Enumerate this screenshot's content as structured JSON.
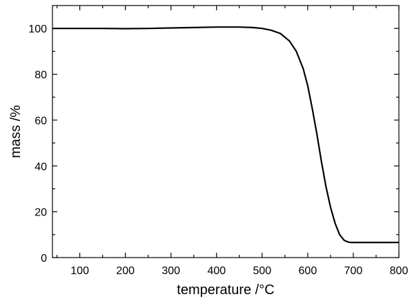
{
  "chart_data": {
    "type": "line",
    "title": "",
    "xlabel": "temperature /°C",
    "ylabel": "mass /%",
    "xlim": [
      40,
      800
    ],
    "ylim": [
      0,
      110
    ],
    "xticks": [
      100,
      200,
      300,
      400,
      500,
      600,
      700,
      800
    ],
    "yticks": [
      0,
      20,
      40,
      60,
      80,
      100
    ],
    "grid": false,
    "legend": "none",
    "line_color": "#000000",
    "series": [
      {
        "x": [
          40,
          100,
          150,
          200,
          250,
          300,
          350,
          400,
          450,
          480,
          500,
          520,
          540,
          560,
          575,
          590,
          600,
          610,
          620,
          630,
          640,
          650,
          660,
          670,
          680,
          690,
          695,
          700,
          720,
          750,
          800
        ],
        "y": [
          100.0,
          100.0,
          100.0,
          99.9,
          100.0,
          100.2,
          100.4,
          100.6,
          100.6,
          100.4,
          100.0,
          99.2,
          97.8,
          94.5,
          90.0,
          82.5,
          75.0,
          65.0,
          54.0,
          42.0,
          31.0,
          22.0,
          15.0,
          10.0,
          7.5,
          6.7,
          6.6,
          6.6,
          6.6,
          6.6,
          6.6
        ]
      }
    ]
  }
}
